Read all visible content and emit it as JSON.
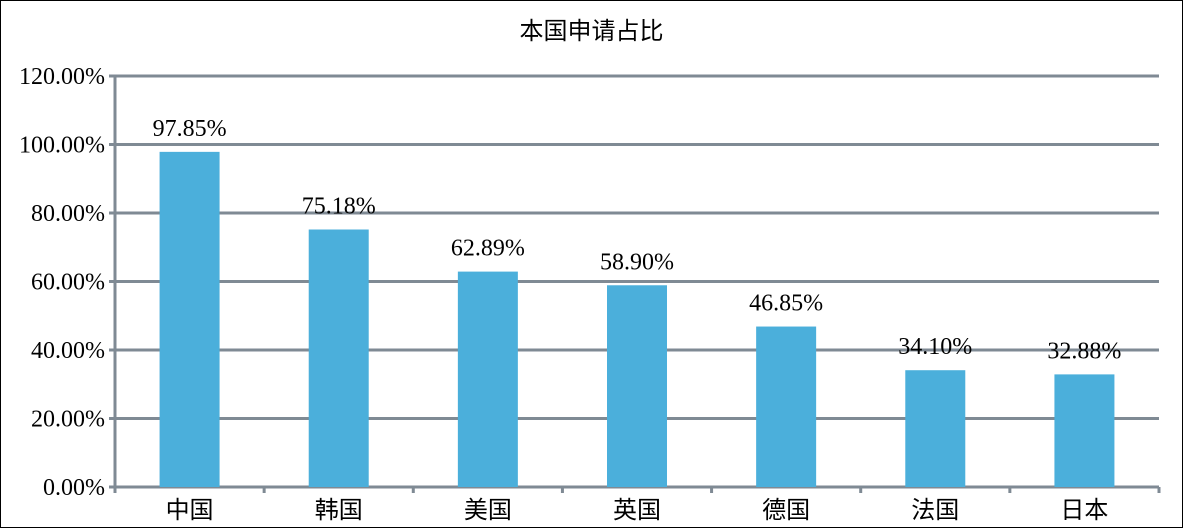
{
  "chart_data": {
    "type": "bar",
    "title": "本国申请占比",
    "categories": [
      "中国",
      "韩国",
      "美国",
      "英国",
      "德国",
      "法国",
      "日本"
    ],
    "values": [
      97.85,
      75.18,
      62.89,
      58.9,
      46.85,
      34.1,
      32.88
    ],
    "data_labels": [
      "97.85%",
      "75.18%",
      "62.89%",
      "58.90%",
      "46.85%",
      "34.10%",
      "32.88%"
    ],
    "ylim": [
      0,
      120
    ],
    "yticks": [
      0,
      20,
      40,
      60,
      80,
      100,
      120
    ],
    "ytick_labels": [
      "0.00%",
      "20.00%",
      "40.00%",
      "60.00%",
      "80.00%",
      "100.00%",
      "120.00%"
    ],
    "xlabel": "",
    "ylabel": "",
    "grid": true,
    "legend": "none",
    "colors": {
      "bar": "#4BAFDB",
      "grid": "#7F8A94"
    }
  }
}
